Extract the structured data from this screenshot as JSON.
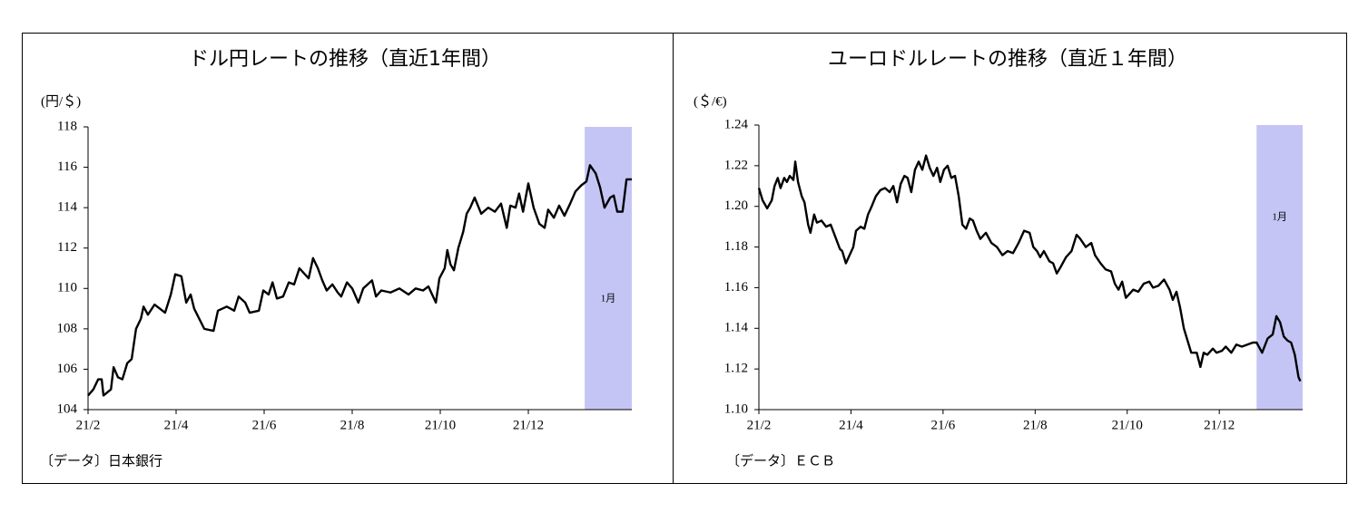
{
  "chart_data": [
    {
      "type": "line",
      "title": "ドル円レートの推移（直近1年間）",
      "unit_label": "(円/＄)",
      "source": "〔データ〕日本銀行",
      "x": [
        0,
        0.12,
        0.23,
        0.31,
        0.35,
        0.52,
        0.58,
        0.68,
        0.78,
        0.89,
        0.99,
        1.09,
        1.2,
        1.26,
        1.36,
        1.51,
        1.63,
        1.75,
        1.88,
        1.98,
        2.12,
        2.23,
        2.33,
        2.41,
        2.64,
        2.85,
        2.95,
        3.15,
        3.32,
        3.42,
        3.57,
        3.67,
        3.88,
        3.98,
        4.1,
        4.19,
        4.29,
        4.43,
        4.56,
        4.68,
        4.8,
        5.01,
        5.11,
        5.22,
        5.32,
        5.42,
        5.55,
        5.67,
        5.75,
        5.88,
        6,
        6.14,
        6.25,
        6.45,
        6.54,
        6.66,
        6.87,
        7.07,
        7.28,
        7.44,
        7.61,
        7.73,
        7.9,
        7.98,
        8.1,
        8.16,
        8.23,
        8.31,
        8.41,
        8.52,
        8.6,
        8.68,
        8.78,
        8.93,
        9.09,
        9.24,
        9.38,
        9.51,
        9.59,
        9.71,
        9.79,
        9.88,
        10,
        10.12,
        10.25,
        10.37,
        10.45,
        10.58,
        10.7,
        10.82,
        10.95,
        11.07,
        11.2,
        11.32,
        11.4,
        11.53,
        11.63,
        11.73,
        11.86,
        11.94,
        12.02,
        12.14,
        12.23,
        12.35
      ],
      "series": [
        {
          "color": "#000000",
          "values": [
            104.7,
            105,
            105.5,
            105.5,
            104.7,
            105,
            106.1,
            105.6,
            105.5,
            106.3,
            106.5,
            108,
            108.5,
            109.1,
            108.7,
            109.2,
            109,
            108.8,
            109.7,
            110.7,
            110.6,
            109.3,
            109.7,
            109,
            108,
            107.9,
            108.9,
            109.1,
            108.9,
            109.6,
            109.3,
            108.8,
            108.9,
            109.9,
            109.7,
            110.3,
            109.5,
            109.6,
            110.3,
            110.2,
            111,
            110.5,
            111.5,
            111,
            110.4,
            109.9,
            110.2,
            109.8,
            109.6,
            110.3,
            110,
            109.3,
            110,
            110.4,
            109.6,
            109.9,
            109.8,
            110,
            109.7,
            110,
            109.9,
            110.1,
            109.3,
            110.5,
            111,
            111.9,
            111.2,
            110.9,
            112,
            112.8,
            113.7,
            114,
            114.5,
            113.7,
            114,
            113.8,
            114.2,
            113,
            114.1,
            114,
            114.7,
            113.8,
            115.2,
            114,
            113.2,
            113,
            113.9,
            113.5,
            114.1,
            113.6,
            114.2,
            114.8,
            115.1,
            115.3,
            116.1,
            115.7,
            115,
            114,
            114.5,
            114.6,
            113.8,
            113.8,
            115.4,
            115.4
          ]
        }
      ],
      "xlim": [
        0,
        12.35
      ],
      "xticks": [
        {
          "value": 0,
          "label": "21/2"
        },
        {
          "value": 2,
          "label": "21/4"
        },
        {
          "value": 4,
          "label": "21/6"
        },
        {
          "value": 6,
          "label": "21/8"
        },
        {
          "value": 8,
          "label": "21/10"
        },
        {
          "value": 10,
          "label": "21/12"
        }
      ],
      "ylim": [
        104,
        118
      ],
      "yticks": [
        104,
        106,
        108,
        110,
        112,
        114,
        116,
        118
      ],
      "shade": {
        "from": 11.28,
        "to": 12.35,
        "label": "1月",
        "color": "#c5c5f5"
      }
    },
    {
      "type": "line",
      "title": "ユーロドルレートの推移（直近１年間）",
      "unit_label": "(＄/€)",
      "source": "〔データ〕ＥＣＢ",
      "x": [
        0,
        0.08,
        0.18,
        0.28,
        0.34,
        0.41,
        0.47,
        0.55,
        0.61,
        0.67,
        0.75,
        0.79,
        0.85,
        0.93,
        0.99,
        1.07,
        1.12,
        1.2,
        1.26,
        1.36,
        1.46,
        1.56,
        1.66,
        1.76,
        1.81,
        1.89,
        1.97,
        2.05,
        2.11,
        2.21,
        2.29,
        2.37,
        2.45,
        2.54,
        2.64,
        2.74,
        2.84,
        2.92,
        3,
        3.08,
        3.16,
        3.23,
        3.31,
        3.39,
        3.47,
        3.55,
        3.63,
        3.71,
        3.79,
        3.87,
        3.94,
        4.02,
        4.1,
        4.18,
        4.26,
        4.34,
        4.42,
        4.5,
        4.58,
        4.65,
        4.73,
        4.81,
        4.93,
        5.05,
        5.17,
        5.29,
        5.4,
        5.52,
        5.64,
        5.76,
        5.88,
        5.96,
        6.04,
        6.11,
        6.19,
        6.31,
        6.39,
        6.47,
        6.55,
        6.67,
        6.79,
        6.9,
        6.98,
        7.1,
        7.22,
        7.3,
        7.42,
        7.53,
        7.65,
        7.73,
        7.81,
        7.89,
        7.97,
        8.05,
        8.13,
        8.24,
        8.36,
        8.48,
        8.56,
        8.68,
        8.8,
        8.92,
        8.99,
        9.07,
        9.15,
        9.23,
        9.31,
        9.39,
        9.51,
        9.59,
        9.66,
        9.74,
        9.86,
        9.94,
        10.06,
        10.14,
        10.26,
        10.37,
        10.49,
        10.61,
        10.73,
        10.81,
        10.93,
        11.05,
        11.16,
        11.24,
        11.32,
        11.4,
        11.48,
        11.56,
        11.64,
        11.72,
        11.76
      ],
      "series": [
        {
          "color": "#000000",
          "values": [
            1.209,
            1.203,
            1.199,
            1.203,
            1.21,
            1.214,
            1.209,
            1.214,
            1.212,
            1.215,
            1.213,
            1.222,
            1.212,
            1.205,
            1.202,
            1.191,
            1.187,
            1.196,
            1.192,
            1.193,
            1.19,
            1.191,
            1.185,
            1.179,
            1.178,
            1.172,
            1.176,
            1.18,
            1.188,
            1.19,
            1.189,
            1.196,
            1.2,
            1.205,
            1.208,
            1.209,
            1.207,
            1.21,
            1.202,
            1.211,
            1.215,
            1.214,
            1.207,
            1.218,
            1.222,
            1.218,
            1.225,
            1.219,
            1.215,
            1.219,
            1.212,
            1.218,
            1.22,
            1.214,
            1.215,
            1.205,
            1.191,
            1.189,
            1.194,
            1.193,
            1.188,
            1.184,
            1.187,
            1.182,
            1.18,
            1.176,
            1.178,
            1.177,
            1.182,
            1.188,
            1.187,
            1.18,
            1.178,
            1.175,
            1.178,
            1.173,
            1.172,
            1.167,
            1.17,
            1.175,
            1.178,
            1.186,
            1.184,
            1.18,
            1.182,
            1.176,
            1.172,
            1.169,
            1.168,
            1.162,
            1.159,
            1.163,
            1.155,
            1.157,
            1.159,
            1.158,
            1.162,
            1.163,
            1.16,
            1.161,
            1.164,
            1.159,
            1.154,
            1.158,
            1.15,
            1.14,
            1.134,
            1.128,
            1.128,
            1.121,
            1.128,
            1.127,
            1.13,
            1.128,
            1.129,
            1.131,
            1.128,
            1.132,
            1.131,
            1.132,
            1.133,
            1.133,
            1.128,
            1.135,
            1.137,
            1.146,
            1.143,
            1.136,
            1.134,
            1.133,
            1.127,
            1.116,
            1.114
          ]
        }
      ],
      "xlim": [
        0,
        11.81
      ],
      "xticks": [
        {
          "value": 0,
          "label": "21/2"
        },
        {
          "value": 2,
          "label": "21/4"
        },
        {
          "value": 4,
          "label": "21/6"
        },
        {
          "value": 6,
          "label": "21/8"
        },
        {
          "value": 8,
          "label": "21/10"
        },
        {
          "value": 10,
          "label": "21/12"
        }
      ],
      "ylim": [
        1.1,
        1.24
      ],
      "yticks": [
        {
          "value": 1.1,
          "label": "1.10"
        },
        {
          "value": 1.12,
          "label": "1.12"
        },
        {
          "value": 1.14,
          "label": "1.14"
        },
        {
          "value": 1.16,
          "label": "1.16"
        },
        {
          "value": 1.18,
          "label": "1.18"
        },
        {
          "value": 1.2,
          "label": "1.20"
        },
        {
          "value": 1.22,
          "label": "1.22"
        },
        {
          "value": 1.24,
          "label": "1.24"
        }
      ],
      "shade": {
        "from": 10.81,
        "to": 11.81,
        "label": "1月",
        "color": "#c5c5f5"
      }
    }
  ]
}
